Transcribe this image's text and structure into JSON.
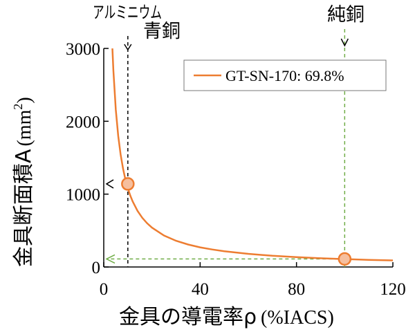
{
  "chart_data": {
    "type": "line",
    "xlabel_main": "金具の導電率ρ",
    "xlabel_unit": "(%IACS)",
    "ylabel_main": "金具断面積A",
    "ylabel_unit": "(mm",
    "ylabel_sup": "2",
    "ylabel_close": ")",
    "xlim": [
      0,
      120
    ],
    "ylim": [
      0,
      3000
    ],
    "x_ticks": [
      0,
      40,
      80,
      120
    ],
    "y_ticks": [
      0,
      1000,
      2000,
      3000
    ],
    "x_tick_labels": [
      "0",
      "40",
      "80",
      "120"
    ],
    "y_tick_labels": [
      "0",
      "1000",
      "2000",
      "3000"
    ],
    "grid": false,
    "legend_position": "top-right",
    "series": [
      {
        "name": "GT-SN-170: 69.8%",
        "color": "#ed7d31",
        "x": [
          3.6,
          4,
          5,
          6,
          7,
          8,
          9,
          10,
          11,
          12,
          14,
          16,
          18,
          20,
          25,
          30,
          35,
          40,
          45,
          50,
          60,
          70,
          80,
          90,
          100,
          110,
          120
        ],
        "y": [
          3000,
          2700,
          2160,
          1800,
          1543,
          1350,
          1200,
          1080,
          982,
          900,
          771,
          675,
          600,
          540,
          432,
          360,
          309,
          270,
          240,
          216,
          180,
          154,
          135,
          120,
          108,
          98,
          90
        ]
      }
    ],
    "highlight_points": [
      {
        "x": 10,
        "y": 1140
      },
      {
        "x": 100,
        "y": 110
      }
    ],
    "reference_lines": [
      {
        "x": 10,
        "color": "#000000",
        "labels": [
          "アルミニウム",
          "青銅"
        ]
      },
      {
        "x": 100,
        "color": "#70ad47",
        "labels": [
          "純銅"
        ]
      }
    ]
  }
}
